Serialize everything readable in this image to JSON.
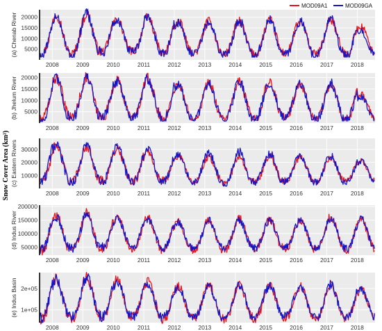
{
  "figure": {
    "y_title": "Snow Cover Area (km²)",
    "legend": [
      {
        "name": "MOD09A1",
        "color": "#e8141c"
      },
      {
        "name": "MOD09GA",
        "color": "#1414c8"
      }
    ],
    "background_color": "#ebebeb",
    "grid_color": "#ffffff"
  },
  "chart_data": [
    {
      "type": "line",
      "panel_label": "(a) Chenab River",
      "x_ticks": [
        "2008",
        "2009",
        "2010",
        "2011",
        "2012",
        "2013",
        "2014",
        "2015",
        "2016",
        "2017",
        "2018"
      ],
      "xlim": [
        "2007-08",
        "2018-08"
      ],
      "y_ticks": [
        5000,
        10000,
        15000,
        20000
      ],
      "y_tick_labels": [
        "5000",
        "10000",
        "15000",
        "20000"
      ],
      "ylim": [
        0,
        23500
      ],
      "grid": true,
      "legend": "top-right",
      "series": [
        {
          "name": "MOD09A1",
          "color": "#e8141c",
          "peak": [
            19500,
            21500,
            21500,
            19000,
            20000,
            18000,
            18000,
            18000,
            18500,
            17500,
            19000,
            15500
          ],
          "trough": [
            2500,
            2500,
            3500,
            4000,
            3000,
            3000,
            2500,
            2500,
            3000,
            2500,
            2500
          ]
        },
        {
          "name": "MOD09GA",
          "color": "#1414c8",
          "peak": [
            18500,
            21000,
            21500,
            18500,
            20500,
            17500,
            17500,
            18500,
            18500,
            18000,
            19000,
            13500
          ],
          "trough": [
            2000,
            2000,
            3000,
            3500,
            2500,
            2500,
            2000,
            2000,
            2500,
            2000,
            2000
          ]
        }
      ]
    },
    {
      "type": "line",
      "panel_label": "(b) Jhelum River",
      "x_ticks": [
        "2008",
        "2009",
        "2010",
        "2011",
        "2012",
        "2013",
        "2014",
        "2015",
        "2016",
        "2017",
        "2018"
      ],
      "xlim": [
        "2007-08",
        "2018-08"
      ],
      "y_ticks": [
        5000,
        10000,
        15000,
        20000
      ],
      "y_tick_labels": [
        "5000",
        "10000",
        "15000",
        "20000"
      ],
      "ylim": [
        0,
        22000
      ],
      "grid": true,
      "legend": "none",
      "series": [
        {
          "name": "MOD09A1",
          "color": "#e8141c",
          "peak": [
            19000,
            20000,
            20000,
            18500,
            19500,
            17000,
            17500,
            18000,
            17500,
            17000,
            17000,
            12500
          ],
          "trough": [
            1500,
            2500,
            2500,
            2500,
            2000,
            2000,
            2000,
            2000,
            2500,
            2000,
            2000
          ]
        },
        {
          "name": "MOD09GA",
          "color": "#1414c8",
          "peak": [
            19000,
            19500,
            20000,
            18500,
            19500,
            16500,
            17500,
            18500,
            17500,
            17000,
            18000,
            11500
          ],
          "trough": [
            1000,
            2000,
            2500,
            2000,
            1500,
            1500,
            1500,
            1500,
            2000,
            1500,
            1500
          ]
        }
      ]
    },
    {
      "type": "line",
      "panel_label": "(c) Eastern Rivers",
      "x_ticks": [
        "2008",
        "2009",
        "2010",
        "2011",
        "2012",
        "2013",
        "2014",
        "2015",
        "2016",
        "2017",
        "2018"
      ],
      "xlim": [
        "2007-08",
        "2018-08"
      ],
      "y_ticks": [
        10000,
        20000,
        30000
      ],
      "y_tick_labels": [
        "10000",
        "20000",
        "30000"
      ],
      "ylim": [
        0,
        38500
      ],
      "grid": true,
      "legend": "none",
      "series": [
        {
          "name": "MOD09A1",
          "color": "#e8141c",
          "peak": [
            30000,
            33000,
            32000,
            30000,
            29000,
            25000,
            24000,
            25000,
            25000,
            24000,
            24000,
            21000
          ],
          "trough": [
            6000,
            5000,
            6000,
            5000,
            6000,
            5000,
            4000,
            5000,
            6000,
            5000,
            6000
          ]
        },
        {
          "name": "MOD09GA",
          "color": "#1414c8",
          "peak": [
            37000,
            33000,
            33000,
            32000,
            30000,
            27000,
            27000,
            28000,
            27000,
            25000,
            25000,
            21000
          ],
          "trough": [
            5000,
            4000,
            5000,
            4500,
            5000,
            4500,
            3000,
            4000,
            5000,
            4500,
            5000
          ]
        }
      ]
    },
    {
      "type": "line",
      "panel_label": "(d) Indus River",
      "x_ticks": [
        "2008",
        "2009",
        "2010",
        "2011",
        "2012",
        "2013",
        "2014",
        "2015",
        "2016",
        "2017",
        "2018"
      ],
      "xlim": [
        "2007-08",
        "2018-08"
      ],
      "y_ticks": [
        50000,
        100000,
        150000,
        200000
      ],
      "y_tick_labels": [
        "50000",
        "100000",
        "150000",
        "200000"
      ],
      "ylim": [
        20000,
        205000
      ],
      "grid": true,
      "legend": "none",
      "series": [
        {
          "name": "MOD09A1",
          "color": "#e8141c",
          "peak": [
            180000,
            165000,
            175000,
            165000,
            160000,
            145000,
            150000,
            155000,
            150000,
            150000,
            160000,
            150000
          ],
          "trough": [
            35000,
            40000,
            45000,
            45000,
            40000,
            40000,
            40000,
            40000,
            45000,
            40000,
            40000
          ]
        },
        {
          "name": "MOD09GA",
          "color": "#1414c8",
          "peak": [
            178000,
            160000,
            170000,
            160000,
            155000,
            140000,
            148000,
            150000,
            148000,
            148000,
            155000,
            152000
          ],
          "trough": [
            40000,
            45000,
            50000,
            50000,
            45000,
            45000,
            45000,
            45000,
            50000,
            45000,
            45000
          ]
        }
      ]
    },
    {
      "type": "line",
      "panel_label": "(e) Indus Basin",
      "x_ticks": [
        "2008",
        "2009",
        "2010",
        "2011",
        "2012",
        "2013",
        "2014",
        "2015",
        "2016",
        "2017",
        "2018"
      ],
      "xlim": [
        "2007-08",
        "2018-08"
      ],
      "y_ticks": [
        100000,
        200000
      ],
      "y_tick_labels": [
        "1e+05",
        "2e+05"
      ],
      "ylim": [
        40000,
        275000
      ],
      "grid": true,
      "legend": "none",
      "series": [
        {
          "name": "MOD09A1",
          "color": "#e8141c",
          "peak": [
            265000,
            245000,
            255000,
            240000,
            230000,
            210000,
            215000,
            220000,
            215000,
            210000,
            220000,
            195000
          ],
          "trough": [
            55000,
            60000,
            65000,
            65000,
            60000,
            60000,
            55000,
            60000,
            65000,
            60000,
            60000
          ]
        },
        {
          "name": "MOD09GA",
          "color": "#1414c8",
          "peak": [
            260000,
            240000,
            250000,
            235000,
            225000,
            205000,
            212000,
            218000,
            212000,
            208000,
            218000,
            195000
          ],
          "trough": [
            60000,
            65000,
            70000,
            70000,
            65000,
            65000,
            60000,
            65000,
            70000,
            65000,
            65000
          ]
        }
      ]
    }
  ]
}
